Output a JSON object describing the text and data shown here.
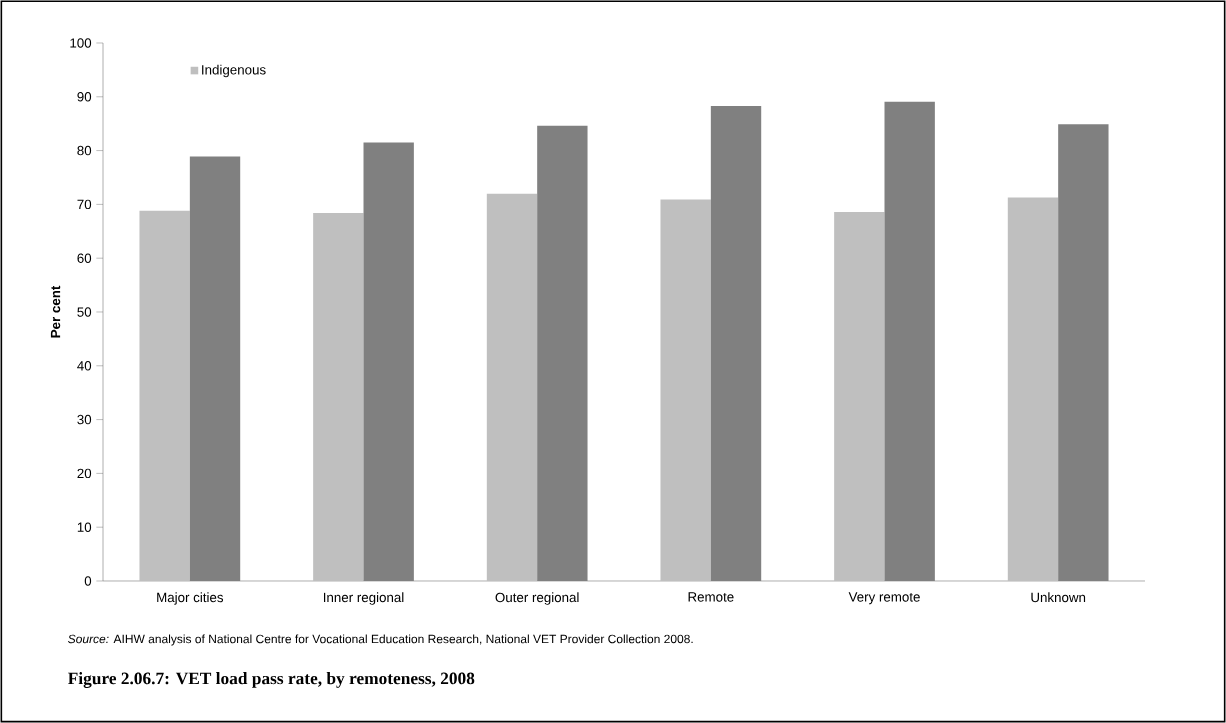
{
  "chart_data": {
    "type": "bar",
    "title": "Figure 2.06.7: VET load pass rate, by remoteness, 2008",
    "ylabel": "Per cent",
    "categories": [
      "Major cities",
      "Inner regional",
      "Outer regional",
      "Remote",
      "Very remote",
      "Unknown"
    ],
    "series": [
      {
        "name": "Indigenous",
        "color": "#bfbfbf",
        "values": [
          68.8,
          68.4,
          72.0,
          70.9,
          68.6,
          71.3
        ]
      },
      {
        "color": "#808080",
        "values": [
          78.9,
          81.5,
          84.6,
          88.3,
          89.1,
          84.9
        ]
      }
    ],
    "ylim": [
      0,
      100
    ],
    "yticks": [
      0,
      10,
      20,
      30,
      40,
      50,
      60,
      70,
      80,
      90,
      100
    ],
    "grid": false,
    "legend": "top left",
    "annotations": [
      "*Source:* AIHW analysis of National Centre for Vocational Education Research, National VET Provider Collection 2008."
    ]
  }
}
